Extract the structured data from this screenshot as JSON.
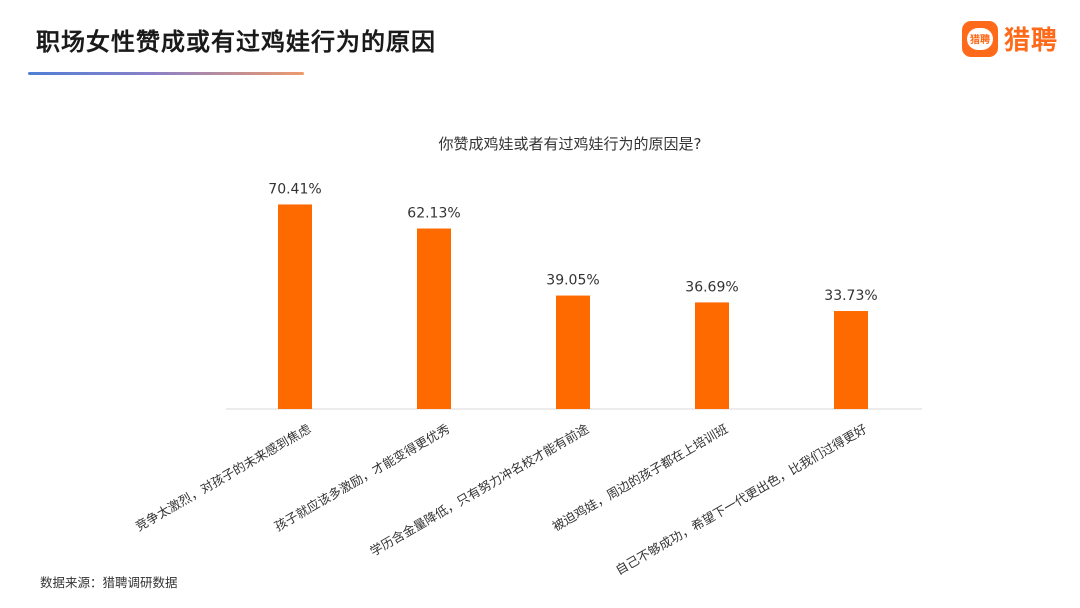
{
  "header": {
    "title": "职场女性赞成或有过鸡娃行为的原因",
    "logo_icon_text": "猎聘",
    "logo_text": "猎聘",
    "accent_color": "#ff6a1a"
  },
  "chart_data": {
    "type": "bar",
    "title": "你赞成鸡娃或者有过鸡娃行为的原因是?",
    "categories": [
      "竞争太激烈，对孩子的未来感到焦虑",
      "孩子就应该多激励，才能变得更优秀",
      "学历含金量降低，只有努力冲名校才能有前途",
      "被迫鸡娃，周边的孩子都在上培训班",
      "自己不够成功，希望下一代更出色，比我们过得更好"
    ],
    "values": [
      70.41,
      62.13,
      39.05,
      36.69,
      33.73
    ],
    "value_labels": [
      "70.41%",
      "62.13%",
      "39.05%",
      "36.69%",
      "33.73%"
    ],
    "unit": "%",
    "bar_color": "#ff6a00",
    "ylim": [
      0,
      100
    ],
    "grid": false,
    "legend": "none"
  },
  "footer": {
    "source": "数据来源：猎聘调研数据"
  }
}
